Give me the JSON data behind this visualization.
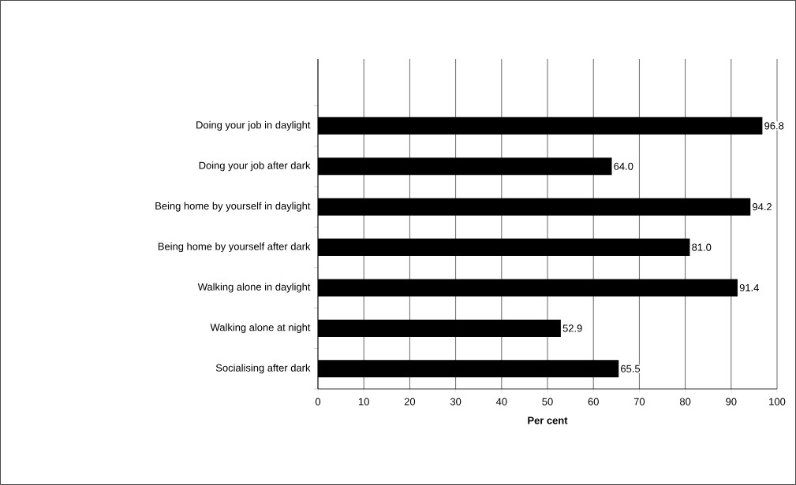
{
  "chart_data": {
    "type": "bar",
    "orientation": "horizontal",
    "xlabel": "Per cent",
    "categories": [
      "Doing your job in daylight",
      "Doing your job after dark",
      "Being home by yourself in daylight",
      "Being home by yourself after dark",
      "Walking alone in daylight",
      "Walking alone at night",
      "Socialising after dark"
    ],
    "values": [
      96.8,
      64.0,
      94.2,
      81.0,
      91.4,
      52.9,
      65.5
    ],
    "value_labels": [
      "96.8",
      "64.0",
      "94.2",
      "81.0",
      "91.4",
      "52.9",
      "65.5"
    ],
    "color": "#000000",
    "xlim": [
      0,
      100
    ],
    "xticks": [
      0,
      10,
      20,
      30,
      40,
      50,
      60,
      70,
      80,
      90,
      100
    ],
    "grid": "x"
  }
}
